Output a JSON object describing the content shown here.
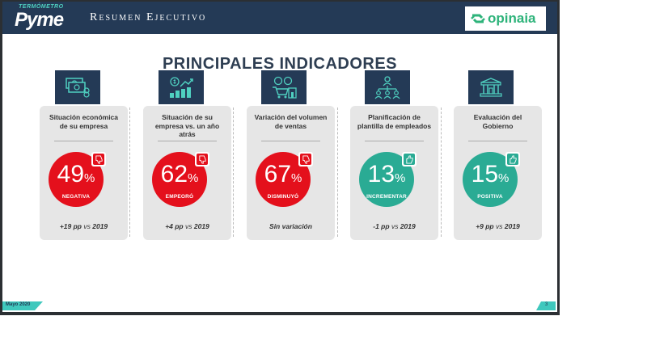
{
  "header": {
    "logo_top": "TERMÓMETRO",
    "logo_main": "Pyme",
    "title": "Resumen Ejecutivo",
    "brand": "opinaia"
  },
  "main_title": "PRINCIPALES INDICADORES",
  "cards": [
    {
      "label": "Situación económica de su empresa",
      "value": "49",
      "unit": "%",
      "status": "NEGATIVA",
      "change": "+19 pp",
      "vs": "vs",
      "year": "2019",
      "tone": "negative",
      "icon": "money-icon"
    },
    {
      "label": "Situación de su empresa vs. un año atrás",
      "value": "62",
      "unit": "%",
      "status": "EMPEORÓ",
      "change": "+4 pp",
      "vs": "vs",
      "year": "2019",
      "tone": "negative",
      "icon": "growth-chart-icon"
    },
    {
      "label": "Variación del volumen de ventas",
      "value": "67",
      "unit": "%",
      "status": "DISMINUYÓ",
      "change": "Sin variación",
      "vs": "",
      "year": "",
      "tone": "negative",
      "icon": "store-icon"
    },
    {
      "label": "Planificación de plantilla de empleados",
      "value": "13",
      "unit": "%",
      "status": "INCREMENTAR",
      "change": "-1 pp",
      "vs": "vs",
      "year": "2019",
      "tone": "positive",
      "icon": "org-chart-icon"
    },
    {
      "label": "Evaluación del Gobierno",
      "value": "15",
      "unit": "%",
      "status": "POSITIVA",
      "change": "+9 pp",
      "vs": "vs",
      "year": "2019",
      "tone": "positive",
      "icon": "government-building-icon"
    }
  ],
  "footer": {
    "date": "Mayo 2020",
    "page": "3"
  },
  "colors": {
    "navy": "#243a56",
    "red": "#e4101c",
    "teal": "#2aab94",
    "accent": "#3fc8bd"
  }
}
